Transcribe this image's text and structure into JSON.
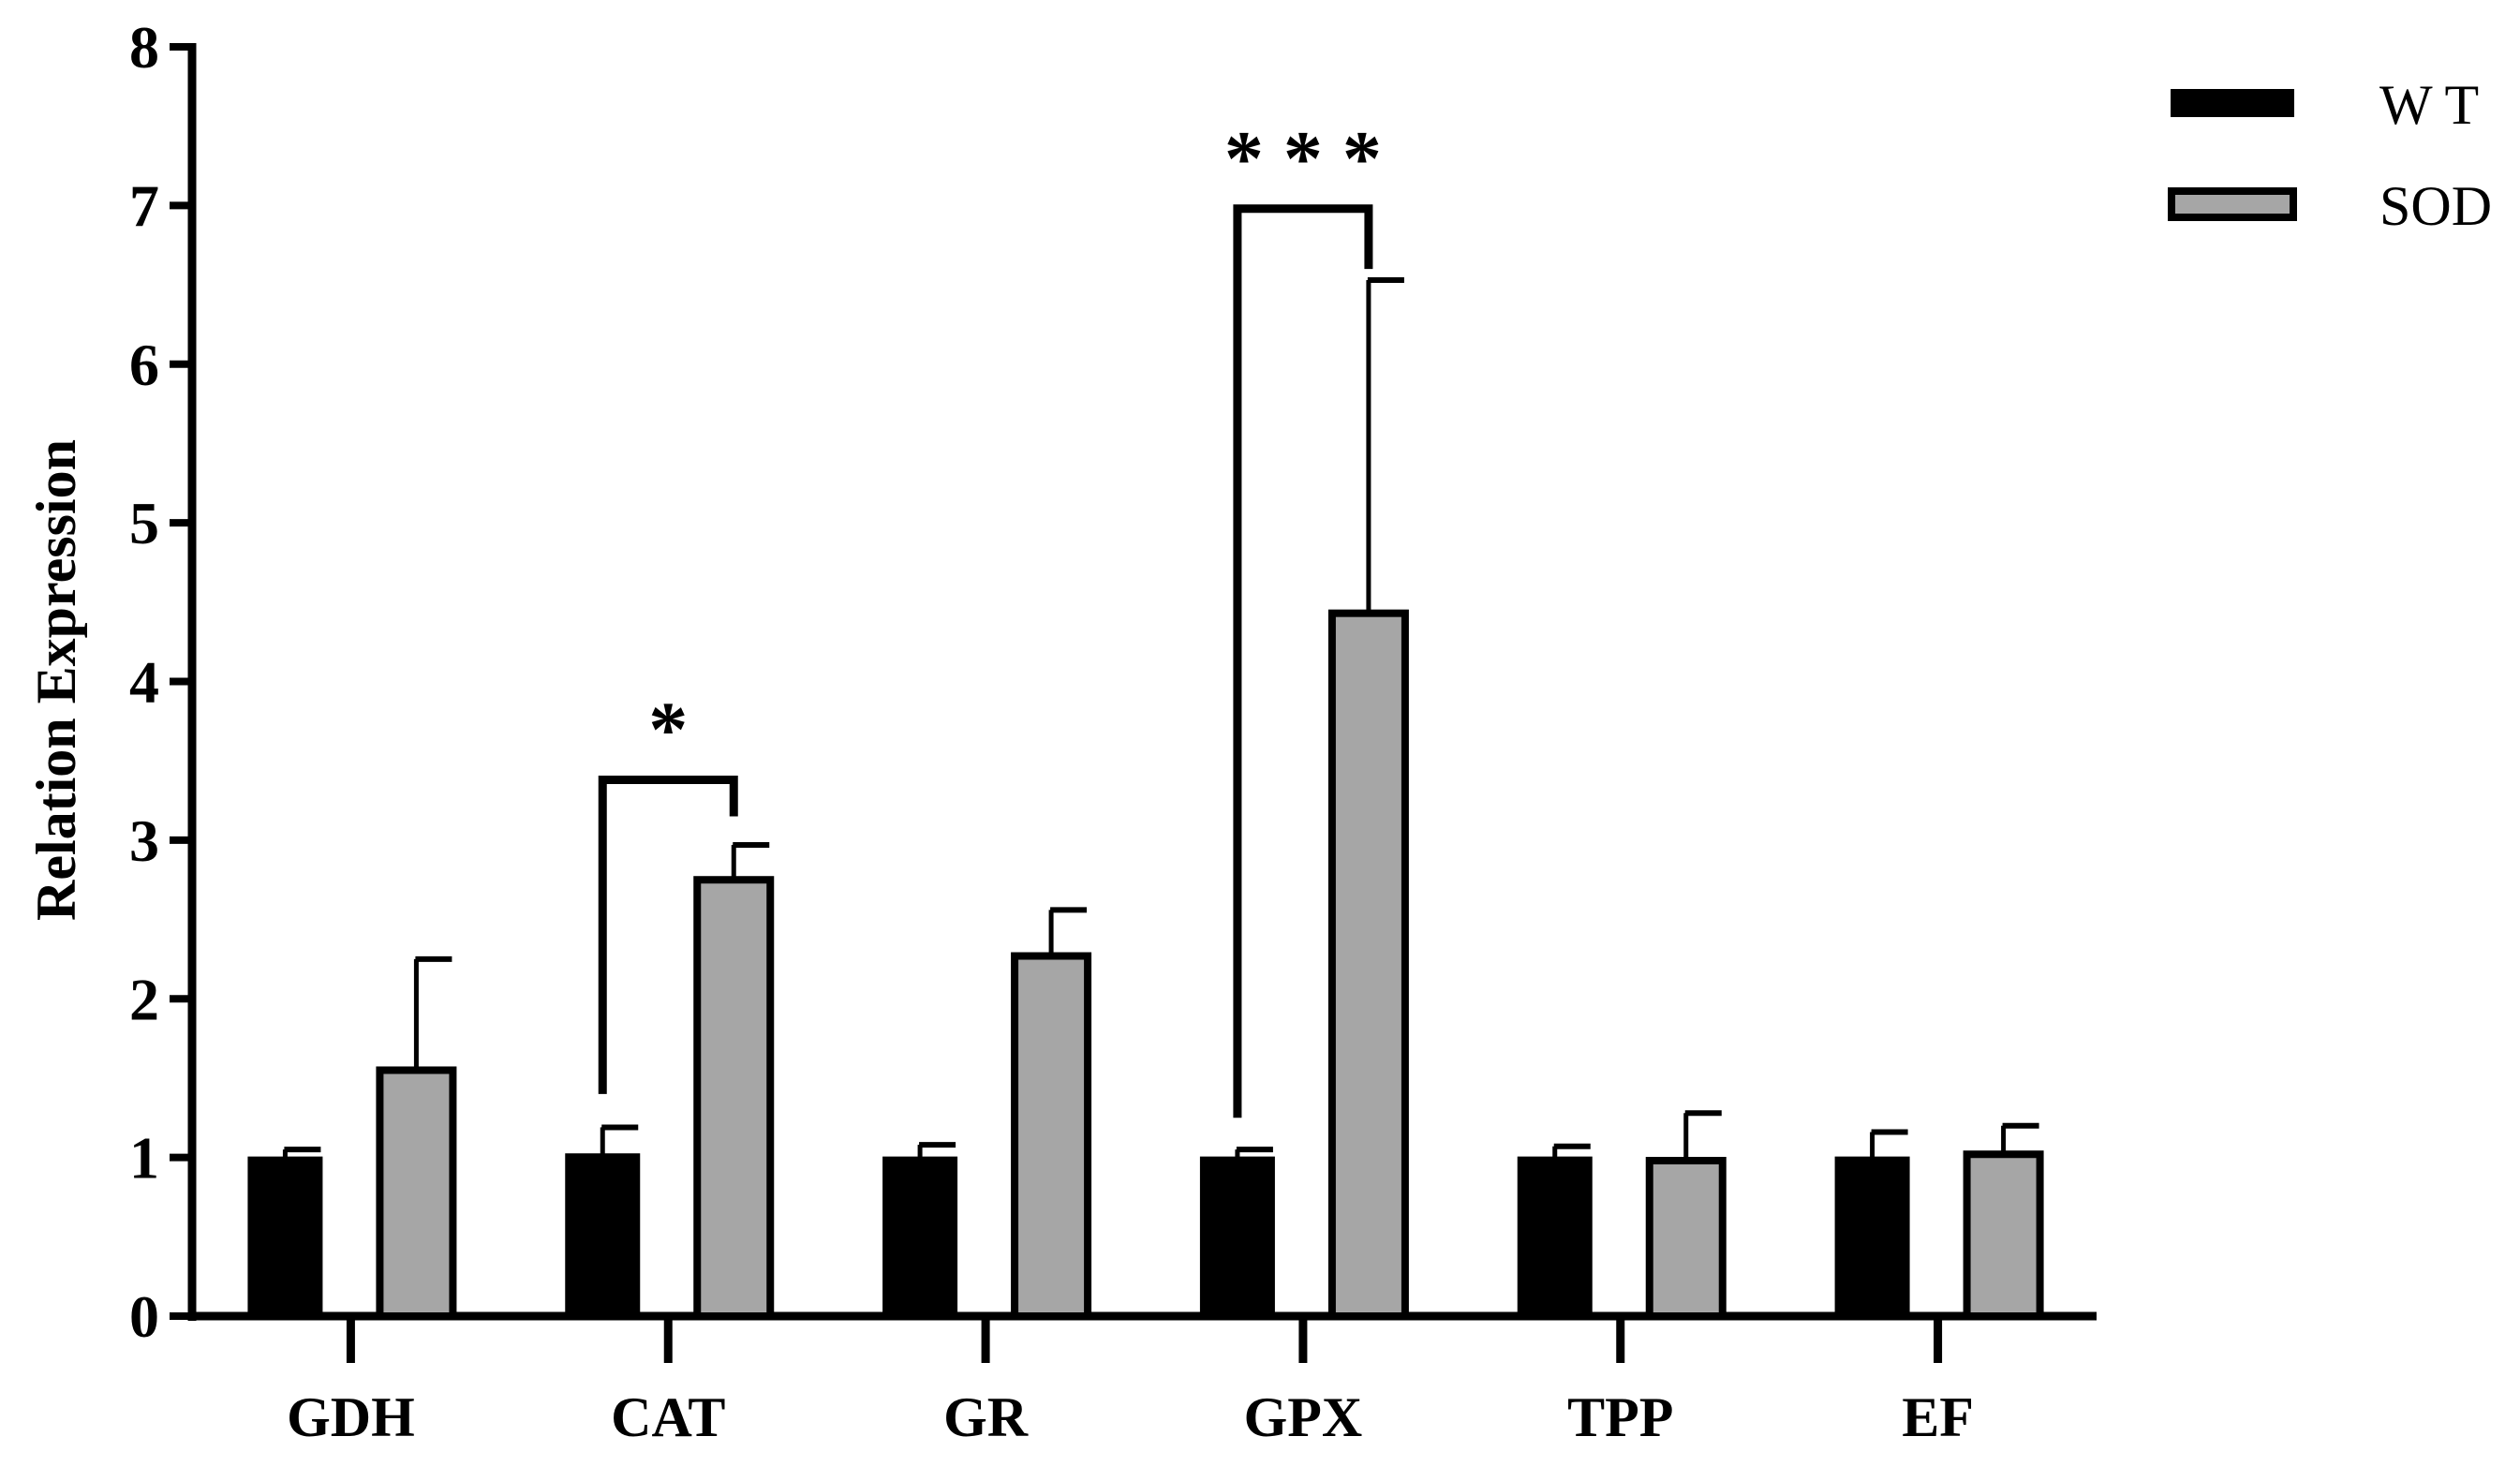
{
  "chart_data": {
    "type": "bar",
    "title": "",
    "xlabel": "",
    "ylabel": "Relation Expression",
    "ylim": [
      0,
      8
    ],
    "yticks": [
      0,
      1,
      2,
      3,
      4,
      5,
      6,
      7,
      8
    ],
    "grid": false,
    "legend_position": "top-right",
    "categories": [
      "GDH",
      "CAT",
      "GR",
      "GPX",
      "TPP",
      "EF"
    ],
    "series": [
      {
        "name": "W T",
        "color": "#000000",
        "values": [
          1.0,
          1.02,
          1.0,
          1.0,
          1.0,
          1.0
        ],
        "errors": [
          0.05,
          0.17,
          0.08,
          0.05,
          0.07,
          0.16
        ]
      },
      {
        "name": "SOD",
        "color": "#a6a6a6",
        "values": [
          1.55,
          2.75,
          2.27,
          4.43,
          0.98,
          1.02
        ],
        "errors": [
          0.7,
          0.22,
          0.29,
          2.1,
          0.3,
          0.18
        ]
      }
    ],
    "annotations": [
      {
        "category": "CAT",
        "label": "*",
        "bracket_top": 3.38,
        "wt_end": 1.4,
        "sod_end": 3.15
      },
      {
        "category": "GPX",
        "label": "* * *",
        "bracket_top": 6.98,
        "wt_end": 1.25,
        "sod_end": 6.6
      }
    ]
  }
}
